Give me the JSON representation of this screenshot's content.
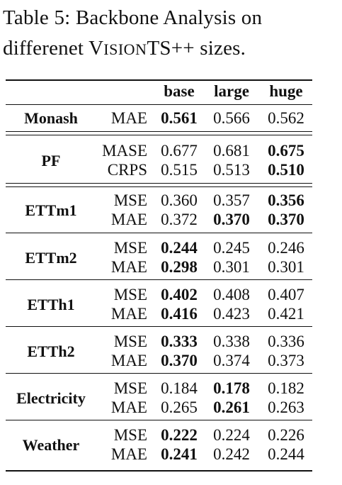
{
  "caption": {
    "line1": "Table 5: Backbone Analysis on",
    "line2_pre": "differenet ",
    "line2_name": "VISIONTS++",
    "line2_post": " sizes."
  },
  "header": {
    "base": "base",
    "large": "large",
    "huge": "huge"
  },
  "rows": [
    {
      "dataset": "Monash",
      "metrics": [
        {
          "name": "MAE",
          "values": [
            "0.561",
            "0.566",
            "0.562"
          ],
          "bold": [
            true,
            false,
            false
          ]
        }
      ]
    },
    {
      "dataset": "PF",
      "metrics": [
        {
          "name": "MASE",
          "values": [
            "0.677",
            "0.681",
            "0.675"
          ],
          "bold": [
            false,
            false,
            true
          ]
        },
        {
          "name": "CRPS",
          "values": [
            "0.515",
            "0.513",
            "0.510"
          ],
          "bold": [
            false,
            false,
            true
          ]
        }
      ]
    },
    {
      "dataset": "ETTm1",
      "metrics": [
        {
          "name": "MSE",
          "values": [
            "0.360",
            "0.357",
            "0.356"
          ],
          "bold": [
            false,
            false,
            true
          ]
        },
        {
          "name": "MAE",
          "values": [
            "0.372",
            "0.370",
            "0.370"
          ],
          "bold": [
            false,
            true,
            true
          ]
        }
      ]
    },
    {
      "dataset": "ETTm2",
      "metrics": [
        {
          "name": "MSE",
          "values": [
            "0.244",
            "0.245",
            "0.246"
          ],
          "bold": [
            true,
            false,
            false
          ]
        },
        {
          "name": "MAE",
          "values": [
            "0.298",
            "0.301",
            "0.301"
          ],
          "bold": [
            true,
            false,
            false
          ]
        }
      ]
    },
    {
      "dataset": "ETTh1",
      "metrics": [
        {
          "name": "MSE",
          "values": [
            "0.402",
            "0.408",
            "0.407"
          ],
          "bold": [
            true,
            false,
            false
          ]
        },
        {
          "name": "MAE",
          "values": [
            "0.416",
            "0.423",
            "0.421"
          ],
          "bold": [
            true,
            false,
            false
          ]
        }
      ]
    },
    {
      "dataset": "ETTh2",
      "metrics": [
        {
          "name": "MSE",
          "values": [
            "0.333",
            "0.338",
            "0.336"
          ],
          "bold": [
            true,
            false,
            false
          ]
        },
        {
          "name": "MAE",
          "values": [
            "0.370",
            "0.374",
            "0.373"
          ],
          "bold": [
            true,
            false,
            false
          ]
        }
      ]
    },
    {
      "dataset": "Electricity",
      "metrics": [
        {
          "name": "MSE",
          "values": [
            "0.184",
            "0.178",
            "0.182"
          ],
          "bold": [
            false,
            true,
            false
          ]
        },
        {
          "name": "MAE",
          "values": [
            "0.265",
            "0.261",
            "0.263"
          ],
          "bold": [
            false,
            true,
            false
          ]
        }
      ]
    },
    {
      "dataset": "Weather",
      "metrics": [
        {
          "name": "MSE",
          "values": [
            "0.222",
            "0.224",
            "0.226"
          ],
          "bold": [
            true,
            false,
            false
          ]
        },
        {
          "name": "MAE",
          "values": [
            "0.241",
            "0.242",
            "0.244"
          ],
          "bold": [
            true,
            false,
            false
          ]
        }
      ]
    }
  ]
}
